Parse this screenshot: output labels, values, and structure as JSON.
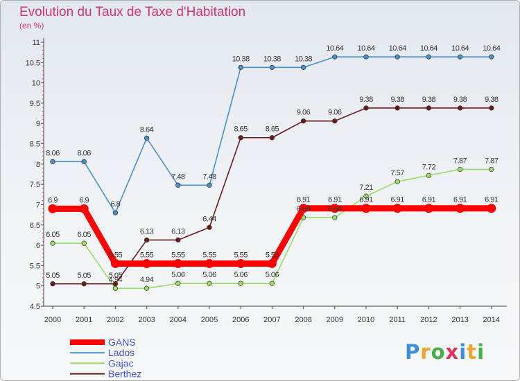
{
  "chart_data": {
    "type": "line",
    "title": "Evolution du Taux de Taxe d'Habitation",
    "subtitle": "(en %)",
    "x": [
      "2000",
      "2001",
      "2002",
      "2003",
      "2004",
      "2005",
      "2006",
      "2007",
      "2008",
      "2009",
      "2010",
      "2011",
      "2012",
      "2013",
      "2014"
    ],
    "ylim": [
      4.5,
      11
    ],
    "yticks": [
      "4.5",
      "5",
      "5.5",
      "6",
      "6.5",
      "7",
      "7.5",
      "8",
      "8.5",
      "9",
      "9.5",
      "10",
      "10.5",
      "11"
    ],
    "grid": false,
    "legend_position": "bottom-left",
    "series": [
      {
        "name": "GANS",
        "color": "#ff0000",
        "values": [
          6.9,
          6.9,
          5.55,
          5.55,
          5.55,
          5.55,
          5.55,
          5.55,
          6.91,
          6.91,
          6.91,
          6.91,
          6.91,
          6.91,
          6.91
        ],
        "labels": [
          "6.9",
          "6.9",
          "5.55",
          "5.55",
          "5.55",
          "5.55",
          "5.55",
          "5.55",
          "6.91",
          "6.91",
          "6.91",
          "6.91",
          "6.91",
          "6.91",
          "6.91"
        ]
      },
      {
        "name": "Lados",
        "color": "#4a90c8",
        "values": [
          8.06,
          8.06,
          6.8,
          8.64,
          7.48,
          7.48,
          10.38,
          10.38,
          10.38,
          10.64,
          10.64,
          10.64,
          10.64,
          10.64,
          10.64
        ],
        "labels": [
          "8.06",
          "8.06",
          "6.8",
          "8.64",
          "7.48",
          "7.48",
          "10.38",
          "10.38",
          "10.38",
          "10.64",
          "10.64",
          "10.64",
          "10.64",
          "10.64",
          "10.64"
        ]
      },
      {
        "name": "Gajac",
        "color": "#99dd66",
        "values": [
          6.05,
          6.05,
          4.94,
          4.94,
          5.06,
          5.06,
          5.06,
          5.06,
          6.68,
          6.68,
          7.21,
          7.57,
          7.72,
          7.87,
          7.87
        ],
        "labels": [
          "6.05",
          "6.05",
          "4.94",
          "4.94",
          "5.06",
          "5.06",
          "5.06",
          "5.06",
          "6.68",
          "6.68",
          "7.21",
          "7.57",
          "7.72",
          "7.87",
          "7.87"
        ]
      },
      {
        "name": "Berthez",
        "color": "#6b1a1a",
        "values": [
          5.05,
          5.05,
          5.05,
          6.13,
          6.13,
          6.44,
          8.65,
          8.65,
          9.06,
          9.06,
          9.38,
          9.38,
          9.38,
          9.38,
          9.38
        ],
        "labels": [
          "5.05",
          "5.05",
          "5.05",
          "6.13",
          "6.13",
          "6.44",
          "8.65",
          "8.65",
          "9.06",
          "9.06",
          "9.38",
          "9.38",
          "9.38",
          "9.38",
          "9.38"
        ]
      }
    ]
  },
  "legend_text_color": "#4455dd",
  "logo": {
    "text": "Proxiti"
  }
}
